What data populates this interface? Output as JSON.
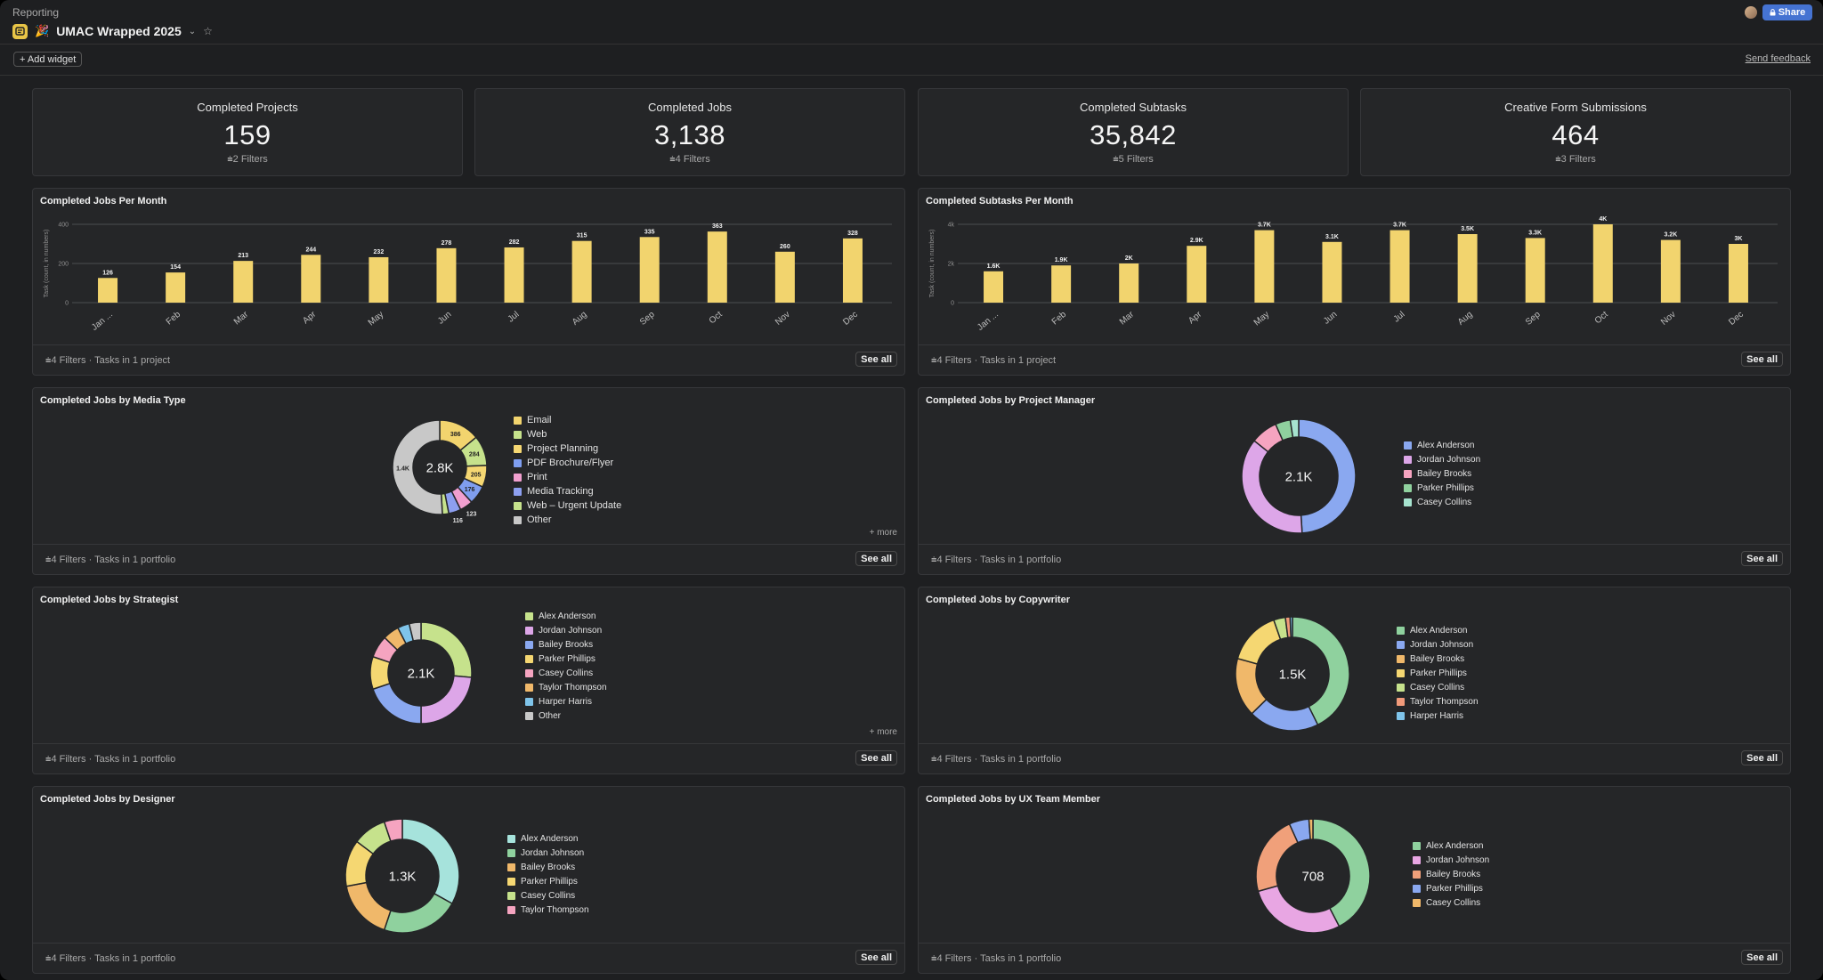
{
  "header": {
    "breadcrumb": "Reporting",
    "title": "UMAC Wrapped 2025",
    "share_label": "Share",
    "add_widget": "+ Add widget",
    "send_feedback": "Send feedback"
  },
  "kpis": [
    {
      "title": "Completed Projects",
      "value": "159",
      "filters": "2 Filters"
    },
    {
      "title": "Completed Jobs",
      "value": "3,138",
      "filters": "4 Filters"
    },
    {
      "title": "Completed Subtasks",
      "value": "35,842",
      "filters": "5 Filters"
    },
    {
      "title": "Creative Form Submissions",
      "value": "464",
      "filters": "3 Filters"
    }
  ],
  "widgets": {
    "jobs_per_month": {
      "title": "Completed Jobs Per Month",
      "footer": "4 Filters · Tasks in 1 project",
      "see_all": "See all"
    },
    "subtasks_per_month": {
      "title": "Completed Subtasks Per Month",
      "footer": "4 Filters · Tasks in 1 project",
      "see_all": "See all"
    },
    "media_type": {
      "title": "Completed Jobs by Media Type",
      "footer": "4 Filters · Tasks in 1 portfolio",
      "see_all": "See all",
      "more": "+ more"
    },
    "project_manager": {
      "title": "Completed Jobs by Project Manager",
      "footer": "4 Filters · Tasks in 1 portfolio",
      "see_all": "See all"
    },
    "strategist": {
      "title": "Completed Jobs by Strategist",
      "footer": "4 Filters · Tasks in 1 portfolio",
      "see_all": "See all",
      "more": "+ more"
    },
    "copywriter": {
      "title": "Completed Jobs by Copywriter",
      "footer": "4 Filters · Tasks in 1 portfolio",
      "see_all": "See all"
    },
    "designer": {
      "title": "Completed Jobs by Designer",
      "footer": "4 Filters · Tasks in 1 portfolio",
      "see_all": "See all"
    },
    "ux_team": {
      "title": "Completed Jobs by UX Team Member",
      "footer": "4 Filters · Tasks in 1 portfolio",
      "see_all": "See all"
    }
  },
  "colors": {
    "bar": "#f2d46e",
    "bg": "#252628",
    "accent": "#4573d2"
  },
  "chart_data": [
    {
      "id": "jobs_per_month",
      "type": "bar",
      "title": "Completed Jobs Per Month",
      "ylabel": "Task (count, in numbers)",
      "ylim": [
        0,
        400
      ],
      "yticks": [
        "0",
        "200",
        "400"
      ],
      "ytick_values": [
        0,
        200,
        400
      ],
      "categories": [
        "Jan ...",
        "Feb",
        "Mar",
        "Apr",
        "May",
        "Jun",
        "Jul",
        "Aug",
        "Sep",
        "Oct",
        "Nov",
        "Dec"
      ],
      "values": [
        126,
        154,
        213,
        244,
        232,
        278,
        282,
        315,
        335,
        363,
        260,
        328
      ],
      "labels": [
        "126",
        "154",
        "213",
        "244",
        "232",
        "278",
        "282",
        "315",
        "335",
        "363",
        "260",
        "328"
      ]
    },
    {
      "id": "subtasks_per_month",
      "type": "bar",
      "title": "Completed Subtasks Per Month",
      "ylabel": "Task (count, in numbers)",
      "ylim": [
        0,
        4000
      ],
      "yticks": [
        "0",
        "2k",
        "4k"
      ],
      "ytick_values": [
        0,
        2000,
        4000
      ],
      "categories": [
        "Jan ...",
        "Feb",
        "Mar",
        "Apr",
        "May",
        "Jun",
        "Jul",
        "Aug",
        "Sep",
        "Oct",
        "Nov",
        "Dec"
      ],
      "values": [
        1600,
        1900,
        2000,
        2900,
        3700,
        3100,
        3700,
        3500,
        3300,
        4000,
        3200,
        3000
      ],
      "labels": [
        "1.6K",
        "1.9K",
        "2K",
        "2.9K",
        "3.7K",
        "3.1K",
        "3.7K",
        "3.5K",
        "3.3K",
        "4K",
        "3.2K",
        "3K"
      ]
    },
    {
      "id": "media_type",
      "type": "pie",
      "title": "Completed Jobs by Media Type",
      "total": "2.8K",
      "series": [
        {
          "name": "Email",
          "value": 386,
          "label": "386",
          "color": "#f2d46e"
        },
        {
          "name": "Web",
          "value": 284,
          "label": "284",
          "color": "#c6e28c"
        },
        {
          "name": "Project Planning",
          "value": 205,
          "label": "205",
          "color": "#f5d772"
        },
        {
          "name": "PDF Brochure/Flyer",
          "value": 176,
          "label": "176",
          "color": "#7f9ef0"
        },
        {
          "name": "Print",
          "value": 123,
          "label": "123",
          "color": "#f19fcf"
        },
        {
          "name": "Media Tracking",
          "value": 116,
          "label": "116",
          "color": "#8d9ff0"
        },
        {
          "name": "Web – Urgent Update",
          "value": 60,
          "label": "",
          "color": "#c6e28c"
        },
        {
          "name": "Other",
          "value": 1400,
          "label": "1.4K",
          "color": "#c8c8c8"
        }
      ]
    },
    {
      "id": "project_manager",
      "type": "pie",
      "title": "Completed Jobs by Project Manager",
      "total": "2.1K",
      "series": [
        {
          "name": "Alex Anderson",
          "value": 1030,
          "color": "#8aa8f0"
        },
        {
          "name": "Jordan Johnson",
          "value": 770,
          "color": "#dda6e8"
        },
        {
          "name": "Bailey Brooks",
          "value": 160,
          "color": "#f5a4c0"
        },
        {
          "name": "Parker Phillips",
          "value": 90,
          "color": "#8fd19e"
        },
        {
          "name": "Casey Collins",
          "value": 50,
          "color": "#a6e3cf"
        }
      ]
    },
    {
      "id": "strategist",
      "type": "pie",
      "title": "Completed Jobs by Strategist",
      "total": "2.1K",
      "series": [
        {
          "name": "Alex Anderson",
          "value": 560,
          "color": "#c6e28c"
        },
        {
          "name": "Jordan Johnson",
          "value": 500,
          "color": "#dda6e8"
        },
        {
          "name": "Bailey Brooks",
          "value": 420,
          "color": "#8aa8f0"
        },
        {
          "name": "Parker Phillips",
          "value": 220,
          "color": "#f5d772"
        },
        {
          "name": "Casey Collins",
          "value": 150,
          "color": "#f5a4c0"
        },
        {
          "name": "Taylor Thompson",
          "value": 110,
          "color": "#f0b86a"
        },
        {
          "name": "Harper Harris",
          "value": 80,
          "color": "#7fc4ea"
        },
        {
          "name": "Other",
          "value": 80,
          "color": "#c8c8c8"
        }
      ]
    },
    {
      "id": "copywriter",
      "type": "pie",
      "title": "Completed Jobs by Copywriter",
      "total": "1.5K",
      "series": [
        {
          "name": "Alex Anderson",
          "value": 640,
          "color": "#8fd19e"
        },
        {
          "name": "Jordan Johnson",
          "value": 300,
          "color": "#8aa8f0"
        },
        {
          "name": "Bailey Brooks",
          "value": 250,
          "color": "#f0b86a"
        },
        {
          "name": "Parker Phillips",
          "value": 230,
          "color": "#f5d772"
        },
        {
          "name": "Casey Collins",
          "value": 50,
          "color": "#c6e28c"
        },
        {
          "name": "Taylor Thompson",
          "value": 20,
          "color": "#f19a7a"
        },
        {
          "name": "Harper Harris",
          "value": 10,
          "color": "#7fc4ea"
        }
      ]
    },
    {
      "id": "designer",
      "type": "pie",
      "title": "Completed Jobs by Designer",
      "total": "1.3K",
      "series": [
        {
          "name": "Alex Anderson",
          "value": 450,
          "color": "#a6e3dc"
        },
        {
          "name": "Jordan Johnson",
          "value": 300,
          "color": "#8fd19e"
        },
        {
          "name": "Bailey Brooks",
          "value": 230,
          "color": "#f0b86a"
        },
        {
          "name": "Parker Phillips",
          "value": 180,
          "color": "#f5d772"
        },
        {
          "name": "Casey Collins",
          "value": 130,
          "color": "#c6e28c"
        },
        {
          "name": "Taylor Thompson",
          "value": 70,
          "color": "#f5a4c0"
        }
      ]
    },
    {
      "id": "ux_team",
      "type": "pie",
      "title": "Completed Jobs by UX Team Member",
      "total": "708",
      "series": [
        {
          "name": "Alex Anderson",
          "value": 300,
          "color": "#8fd19e"
        },
        {
          "name": "Jordan Johnson",
          "value": 200,
          "color": "#e8a6e3"
        },
        {
          "name": "Bailey Brooks",
          "value": 160,
          "color": "#f0a07a"
        },
        {
          "name": "Parker Phillips",
          "value": 40,
          "color": "#8aa8f0"
        },
        {
          "name": "Casey Collins",
          "value": 8,
          "color": "#f0b86a"
        }
      ]
    }
  ]
}
